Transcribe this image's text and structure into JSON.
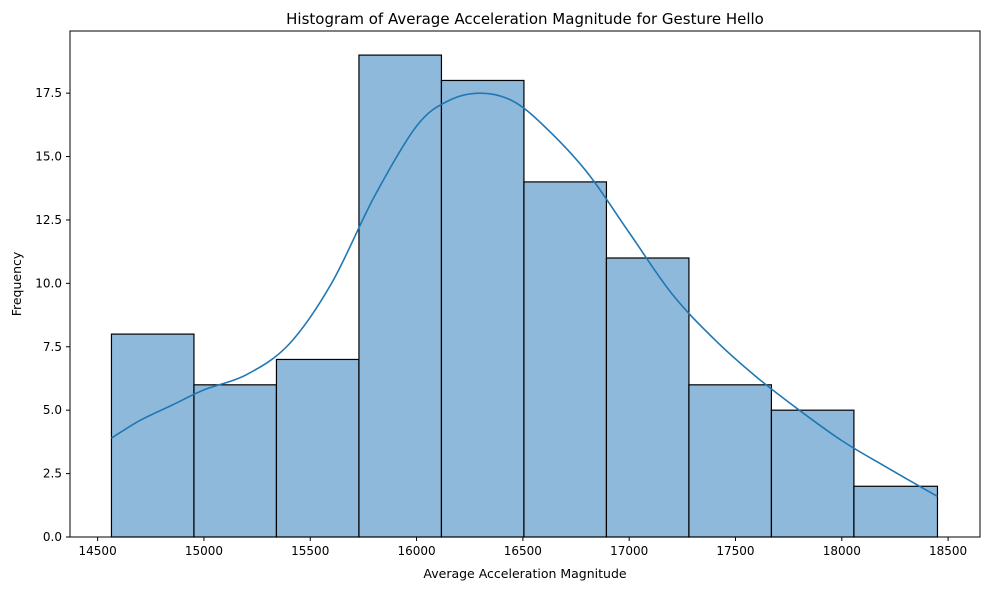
{
  "chart_data": {
    "type": "bar",
    "subtype": "histogram-with-kde",
    "title": "Histogram of Average Acceleration Magnitude for Gesture Hello",
    "xlabel": "Average Acceleration Magnitude",
    "ylabel": "Frequency",
    "xlim": [
      14370,
      18650
    ],
    "ylim": [
      0,
      19.95
    ],
    "grid": false,
    "x_ticks": [
      14500,
      15000,
      15500,
      16000,
      16500,
      17000,
      17500,
      18000,
      18500
    ],
    "y_ticks": [
      0.0,
      2.5,
      5.0,
      7.5,
      10.0,
      12.5,
      15.0,
      17.5
    ],
    "x_tick_labels": [
      "14500",
      "15000",
      "15500",
      "16000",
      "16500",
      "17000",
      "17500",
      "18000",
      "18500"
    ],
    "y_tick_labels": [
      "0.0",
      "2.5",
      "5.0",
      "7.5",
      "10.0",
      "12.5",
      "15.0",
      "17.5"
    ],
    "bins": {
      "edges": [
        14565,
        14953,
        15341,
        15729,
        16117,
        16505,
        16893,
        17281,
        17669,
        18057,
        18450
      ],
      "counts": [
        8,
        6,
        7,
        19,
        18,
        14,
        11,
        6,
        5,
        2
      ]
    },
    "kde": {
      "x": [
        14565,
        14700,
        14850,
        15000,
        15200,
        15400,
        15600,
        15800,
        16000,
        16150,
        16300,
        16450,
        16600,
        16800,
        17000,
        17200,
        17400,
        17600,
        17800,
        18000,
        18200,
        18450
      ],
      "y": [
        3.9,
        4.6,
        5.2,
        5.8,
        6.4,
        7.6,
        10.0,
        13.4,
        16.2,
        17.2,
        17.5,
        17.2,
        16.2,
        14.4,
        12.0,
        9.6,
        7.8,
        6.3,
        5.0,
        3.8,
        2.8,
        1.6
      ]
    },
    "colors": {
      "bar_fill": "#8fb9da",
      "bar_edge": "#000000",
      "kde_line": "#1f77b4"
    }
  }
}
